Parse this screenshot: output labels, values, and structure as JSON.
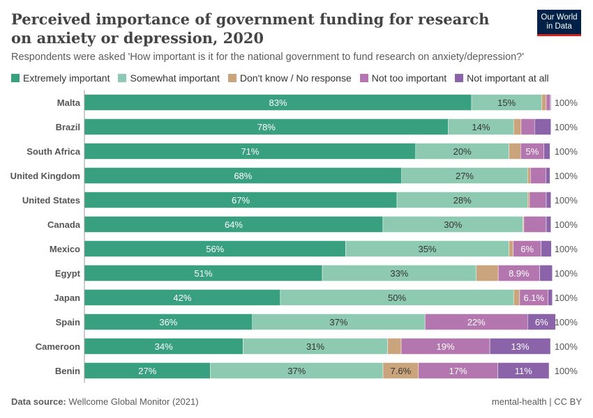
{
  "header": {
    "title": "Perceived importance of government funding for research on anxiety or depression, 2020",
    "subtitle": "Respondents were asked 'How important is it for the national government to fund research on anxiety/depression?'",
    "logo": "Our World in Data"
  },
  "footer": {
    "source_label": "Data source:",
    "source": "Wellcome Global Monitor (2021)",
    "license": "mental-health | CC BY"
  },
  "chart_data": {
    "type": "bar",
    "orientation": "horizontal",
    "stacked": true,
    "xlim": [
      0,
      100
    ],
    "categories": [
      "Malta",
      "Brazil",
      "South Africa",
      "United Kingdom",
      "United States",
      "Canada",
      "Mexico",
      "Egypt",
      "Japan",
      "Spain",
      "Cameroon",
      "Benin"
    ],
    "totals": [
      "100%",
      "100%",
      "100%",
      "100%",
      "100%",
      "100%",
      "100%",
      "100%",
      "100%",
      "100%",
      "100%",
      "100%"
    ],
    "legend_position": "top",
    "series": [
      {
        "name": "Extremely important",
        "color": "#38a07e",
        "values": [
          83,
          78,
          71,
          68,
          67,
          64,
          56,
          51,
          42,
          36,
          34,
          27
        ],
        "labels": [
          "83%",
          "78%",
          "71%",
          "68%",
          "67%",
          "64%",
          "56%",
          "51%",
          "42%",
          "36%",
          "34%",
          "27%"
        ]
      },
      {
        "name": "Somewhat important",
        "color": "#8ecab1",
        "values": [
          15,
          14,
          20,
          27,
          28,
          30,
          35,
          33,
          50,
          37,
          31,
          37
        ],
        "labels": [
          "15%",
          "14%",
          "20%",
          "27%",
          "28%",
          "30%",
          "35%",
          "33%",
          "50%",
          "37%",
          "31%",
          "37%"
        ]
      },
      {
        "name": "Don't know / No response",
        "color": "#c9a47c",
        "values": [
          1.0,
          1.6,
          2.5,
          0.6,
          0.4,
          0.2,
          0.9,
          4.7,
          1.3,
          0,
          2.9,
          7.6
        ],
        "labels": [
          null,
          null,
          null,
          null,
          null,
          null,
          null,
          null,
          null,
          null,
          null,
          "7.6%"
        ]
      },
      {
        "name": "Not too important",
        "color": "#b376ae",
        "values": [
          0.8,
          2.9,
          5,
          3.3,
          3.6,
          4.8,
          6,
          8.9,
          6.1,
          22,
          19,
          17
        ],
        "labels": [
          null,
          null,
          "5%",
          null,
          null,
          null,
          "6%",
          "8.9%",
          "6.1%",
          "22%",
          "19%",
          "17%"
        ]
      },
      {
        "name": "Not important at all",
        "color": "#8a63a8",
        "values": [
          0.2,
          3.5,
          1.3,
          0.9,
          1.0,
          1.0,
          2.2,
          2.7,
          0.9,
          6,
          13,
          11
        ],
        "labels": [
          null,
          null,
          null,
          null,
          null,
          null,
          null,
          null,
          null,
          "6%",
          "13%",
          "11%"
        ]
      }
    ]
  }
}
